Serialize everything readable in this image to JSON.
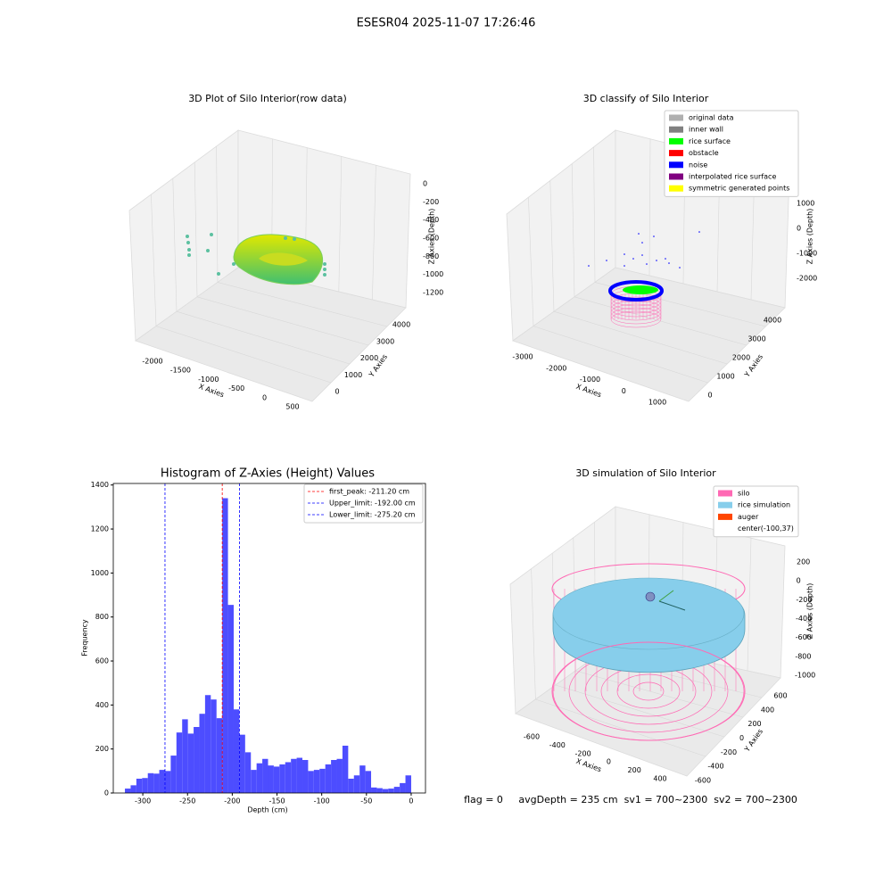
{
  "title": "ESESR04 2025-11-07 17:26:46",
  "status": "flag = 0     avgDepth = 235 cm  sv1 = 700~2300  sv2 = 700~2300",
  "chart_data": [
    {
      "type": "scatter3d",
      "title": "3D Plot of Silo Interior(row data)",
      "xlabel": "X Axies",
      "ylabel": "Y Axies",
      "zlabel": "Z Axies (Depth)",
      "xticks": [
        -2000,
        -1500,
        -1000,
        -500,
        0,
        500
      ],
      "yticks": [
        0,
        1000,
        2000,
        3000,
        4000
      ],
      "zticks": [
        0,
        -200,
        -400,
        -600,
        -800,
        -1000,
        -1200
      ]
    },
    {
      "type": "classify3d",
      "title": "3D classify of Silo Interior",
      "xlabel": "X Axies",
      "ylabel": "Y Axies",
      "zlabel": "Z Axies (Depth)",
      "xticks": [
        -3000,
        -2000,
        -1000,
        0,
        1000
      ],
      "yticks": [
        0,
        1000,
        2000,
        3000,
        4000
      ],
      "zticks": [
        1000,
        0,
        -1000,
        -2000
      ],
      "series": [
        {
          "name": "original data",
          "color": "#b0b0b0"
        },
        {
          "name": "inner wall",
          "color": "#808080"
        },
        {
          "name": "rice surface",
          "color": "#00ff00"
        },
        {
          "name": "obstacle",
          "color": "#ff0000"
        },
        {
          "name": "noise",
          "color": "#0000ff"
        },
        {
          "name": "interpolated rice surface",
          "color": "#800080"
        },
        {
          "name": "symmetric generated points",
          "color": "#ffff00"
        }
      ]
    },
    {
      "type": "histogram",
      "title": "Histogram of Z-Axies (Height) Values",
      "xlabel": "Depth (cm)",
      "ylabel": "Frequency",
      "color": "#4d4dff",
      "bins": [
        -320,
        -313.6,
        -307.2,
        -300.8,
        -294.4,
        -288,
        -281.6,
        -275.2,
        -268.8,
        -262.4,
        -256,
        -249.6,
        -243.2,
        -236.8,
        -230.4,
        -224,
        -217.6,
        -211.2,
        -204.8,
        -198.4,
        -192,
        -185.6,
        -179.2,
        -172.8,
        -166.4,
        -160,
        -153.6,
        -147.2,
        -140.8,
        -134.4,
        -128,
        -121.6,
        -115.2,
        -108.8,
        -102.4,
        -96,
        -89.6,
        -83.2,
        -76.8,
        -70.4,
        -64,
        -57.6,
        -51.2,
        -44.8,
        -38.4,
        -32,
        -25.6,
        -19.2,
        -12.8,
        -6.4,
        0
      ],
      "values": [
        20,
        35,
        65,
        68,
        90,
        88,
        105,
        100,
        170,
        275,
        335,
        270,
        300,
        360,
        445,
        425,
        340,
        1340,
        855,
        380,
        265,
        185,
        105,
        135,
        155,
        125,
        120,
        130,
        140,
        155,
        160,
        150,
        100,
        105,
        110,
        130,
        150,
        155,
        215,
        65,
        80,
        125,
        100,
        25,
        22,
        18,
        20,
        28,
        45,
        80
      ],
      "xlim": [
        -333,
        16
      ],
      "ylim": [
        0,
        1407
      ],
      "xticks": [
        -300,
        -250,
        -200,
        -150,
        -100,
        -50,
        0
      ],
      "yticks": [
        0,
        200,
        400,
        600,
        800,
        1000,
        1200,
        1400
      ],
      "vlines": [
        {
          "name": "first_peak: -211.20 cm",
          "value": -211.2,
          "color": "#ff0000"
        },
        {
          "name": "Upper_limit: -192.00 cm",
          "value": -192,
          "color": "#0000ff"
        },
        {
          "name": "Lower_limit: -275.20 cm",
          "value": -275.2,
          "color": "#0000ff"
        }
      ]
    },
    {
      "type": "simulation3d",
      "title": "3D simulation of Silo Interior",
      "xlabel": "X Axies",
      "ylabel": "Y Axies",
      "zlabel": "Z Axies (Depth)",
      "xticks": [
        -600,
        -400,
        -200,
        0,
        200,
        400
      ],
      "yticks": [
        -600,
        -400,
        -200,
        0,
        200,
        400,
        600
      ],
      "zticks": [
        200,
        0,
        -200,
        -400,
        -600,
        -800,
        -1000
      ],
      "series": [
        {
          "name": "silo",
          "color": "#ff69b4"
        },
        {
          "name": "rice simulation",
          "color": "#87ceeb"
        },
        {
          "name": "auger",
          "color": "#ff4500"
        },
        {
          "name": "center(-100,37)",
          "color": "#ffffff"
        }
      ]
    }
  ]
}
